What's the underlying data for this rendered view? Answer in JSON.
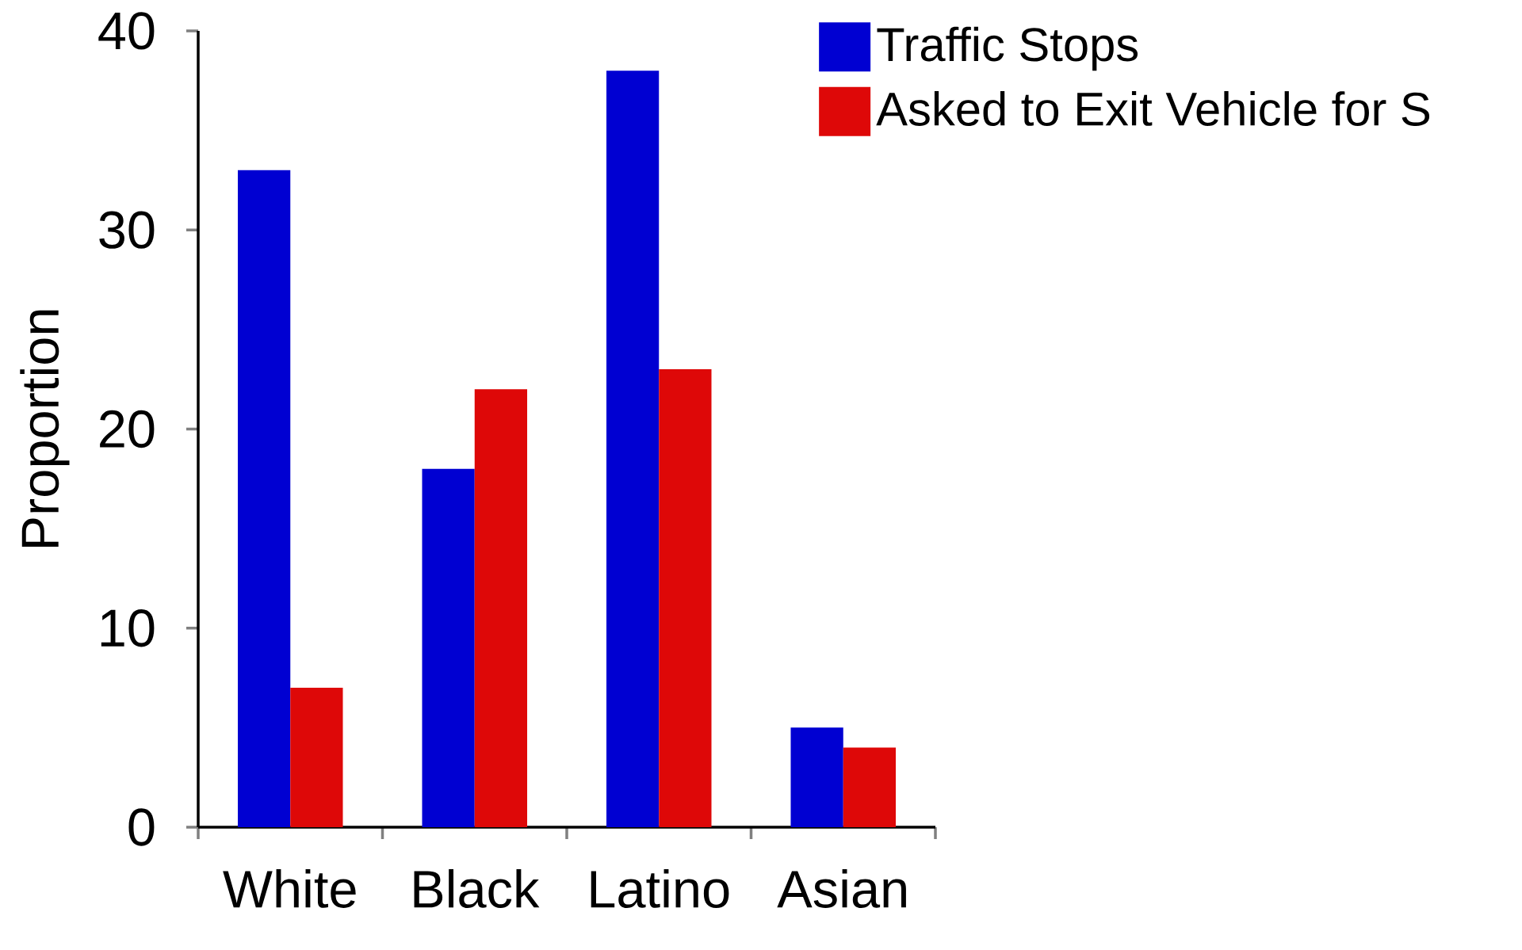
{
  "chart_data": {
    "type": "bar",
    "ylabel": "Proportion",
    "categories": [
      "White",
      "Black",
      "Latino",
      "Asian"
    ],
    "series": [
      {
        "name": "Traffic Stops",
        "color": "#0000d2",
        "values": [
          33,
          18,
          38,
          5
        ]
      },
      {
        "name": "Asked to Exit Vehicle for S",
        "color": "#de0808",
        "values": [
          7,
          22,
          23,
          4
        ]
      }
    ],
    "ylim": [
      0,
      40
    ],
    "yticks": [
      0,
      10,
      20,
      30,
      40
    ],
    "legend": "top right"
  }
}
